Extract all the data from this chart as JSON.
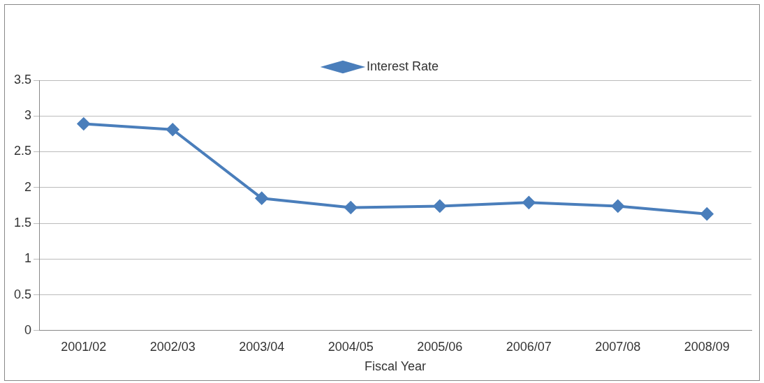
{
  "chart_data": {
    "type": "line",
    "xlabel": "Fiscal Year",
    "categories": [
      "2001/02",
      "2002/03",
      "2003/04",
      "2004/05",
      "2005/06",
      "2006/07",
      "2007/08",
      "2008/09"
    ],
    "series": [
      {
        "name": "Interest Rate",
        "color": "#4a7ebb",
        "values": [
          2.89,
          2.81,
          1.85,
          1.72,
          1.74,
          1.79,
          1.74,
          1.63
        ]
      }
    ],
    "ylim": [
      0,
      3.5
    ],
    "yticks": [
      0,
      0.5,
      1,
      1.5,
      2,
      2.5,
      3,
      3.5
    ],
    "grid": "y",
    "legend": "top",
    "marker": "diamond",
    "line_style": "solid"
  }
}
